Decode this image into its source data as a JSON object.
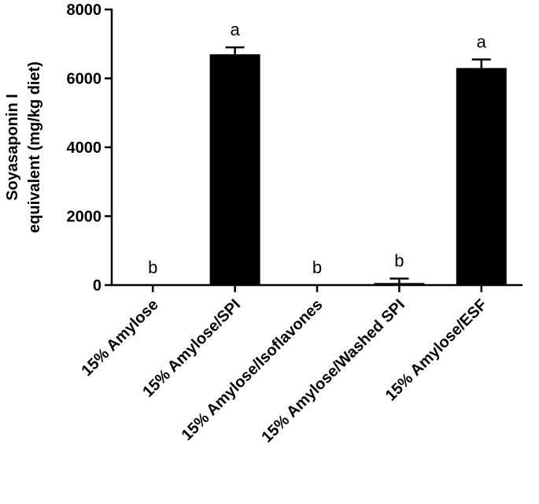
{
  "chart_data": {
    "type": "bar",
    "ylabel": [
      "Soyasaponin I",
      "equivalent (mg/kg diet)"
    ],
    "categories": [
      "15% Amylose",
      "15% Amylose/SPI",
      "15% Amylose/Isoflavones",
      "15% Amylose/Washed SPI",
      "15% Amylose/ESF"
    ],
    "values": [
      0,
      6700,
      0,
      60,
      6300
    ],
    "errors": [
      0,
      200,
      0,
      130,
      250
    ],
    "letters": [
      "b",
      "a",
      "b",
      "b",
      "a"
    ],
    "color": "#000000",
    "ylim": [
      0,
      8000
    ],
    "yticks": [
      0,
      2000,
      4000,
      6000,
      8000
    ],
    "grid": false
  }
}
